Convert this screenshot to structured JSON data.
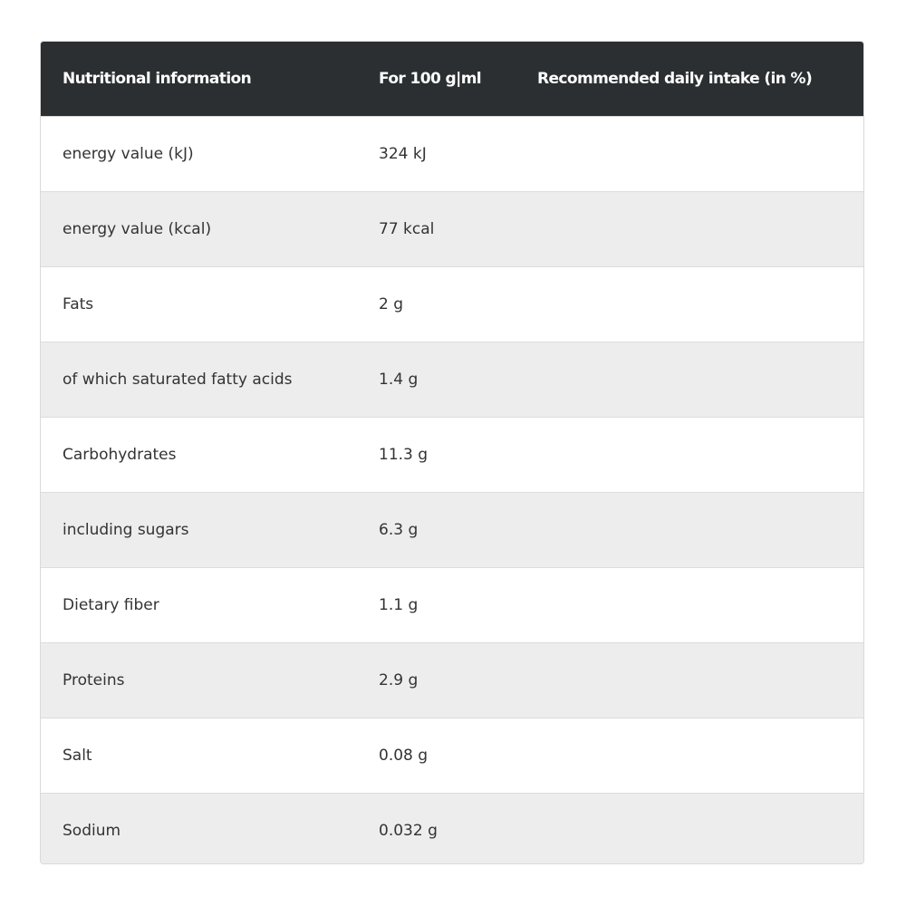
{
  "table": {
    "headers": {
      "nutrient": "Nutritional information",
      "per100": "For 100 g|ml",
      "rdi": "Recommended daily intake (in %)"
    },
    "rows": [
      {
        "name": "energy value (kJ)",
        "amount": "324 kJ",
        "rdi": ""
      },
      {
        "name": "energy value (kcal)",
        "amount": "77 kcal",
        "rdi": ""
      },
      {
        "name": "Fats",
        "amount": "2 g",
        "rdi": ""
      },
      {
        "name": "of which saturated fatty acids",
        "amount": "1.4 g",
        "rdi": ""
      },
      {
        "name": "Carbohydrates",
        "amount": "11.3 g",
        "rdi": ""
      },
      {
        "name": "including sugars",
        "amount": "6.3 g",
        "rdi": ""
      },
      {
        "name": "Dietary fiber",
        "amount": "1.1 g",
        "rdi": ""
      },
      {
        "name": "Proteins",
        "amount": "2.9 g",
        "rdi": ""
      },
      {
        "name": "Salt",
        "amount": "0.08 g",
        "rdi": ""
      },
      {
        "name": "Sodium",
        "amount": "0.032 g",
        "rdi": ""
      }
    ]
  },
  "colors": {
    "header_bg": "#2b2f31",
    "header_text": "#ffffff",
    "row_alt_bg": "#ededed",
    "row_bg": "#ffffff",
    "text": "#333333"
  }
}
